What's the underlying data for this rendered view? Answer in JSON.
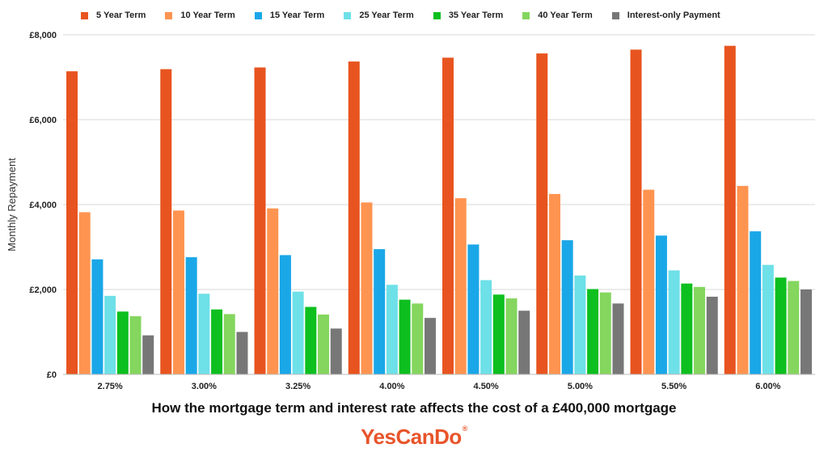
{
  "chart_data": {
    "type": "bar",
    "ylabel": "Monthly Repayment",
    "ylim": [
      0,
      8000
    ],
    "yticks": [
      "£0",
      "£2,000",
      "£4,000",
      "£6,000",
      "£8,000"
    ],
    "ytick_values": [
      0,
      2000,
      4000,
      6000,
      8000
    ],
    "grid": true,
    "legend_position": "top",
    "categories": [
      "2.75%",
      "3.00%",
      "3.25%",
      "4.00%",
      "4.50%",
      "5.00%",
      "5.50%",
      "6.00%"
    ],
    "series": [
      {
        "name": "5 Year Term",
        "color": "#e8541f",
        "values": [
          7140,
          7190,
          7230,
          7370,
          7460,
          7560,
          7650,
          7740
        ]
      },
      {
        "name": "10 Year Term",
        "color": "#ff9450",
        "values": [
          3820,
          3860,
          3910,
          4050,
          4150,
          4250,
          4350,
          4440
        ]
      },
      {
        "name": "15 Year Term",
        "color": "#1aa7e8",
        "values": [
          2710,
          2760,
          2810,
          2950,
          3060,
          3160,
          3270,
          3370
        ]
      },
      {
        "name": "25 Year Term",
        "color": "#6ee0e8",
        "values": [
          1850,
          1900,
          1950,
          2110,
          2220,
          2330,
          2450,
          2580
        ]
      },
      {
        "name": "35 Year Term",
        "color": "#0dbf1f",
        "values": [
          1480,
          1530,
          1590,
          1760,
          1880,
          2010,
          2140,
          2280
        ]
      },
      {
        "name": "40 Year Term",
        "color": "#84d65e",
        "values": [
          1370,
          1420,
          1410,
          1670,
          1790,
          1930,
          2060,
          2200
        ]
      },
      {
        "name": "Interest-only Payment",
        "color": "#777777",
        "values": [
          920,
          1000,
          1080,
          1330,
          1500,
          1670,
          1830,
          2000
        ]
      }
    ]
  },
  "caption": "How the mortgage term and interest rate affects the cost of a £400,000 mortgage",
  "brand": {
    "name": "YesCanDo",
    "mark": "®"
  }
}
